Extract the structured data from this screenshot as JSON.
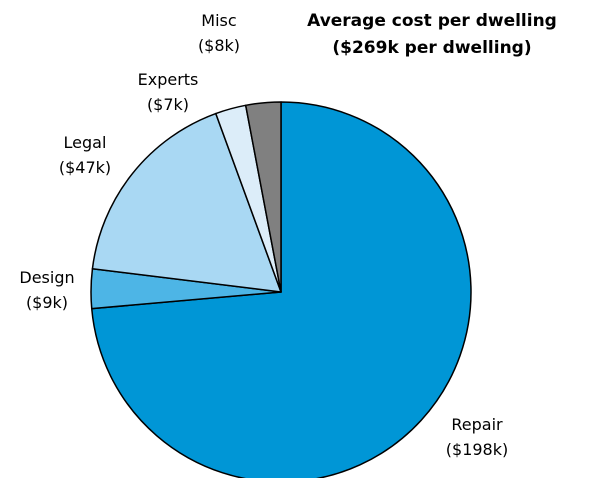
{
  "chart_data": {
    "type": "pie",
    "title": "Average cost per dwelling",
    "subtitle": "($269k per dwelling)",
    "slices": [
      {
        "name": "Repair",
        "value_label": "($198k)",
        "value": 198,
        "color": "#0096d6"
      },
      {
        "name": "Design",
        "value_label": "($9k)",
        "value": 9,
        "color": "#4db5e6"
      },
      {
        "name": "Legal",
        "value_label": "($47k)",
        "value": 47,
        "color": "#a9d8f3"
      },
      {
        "name": "Experts",
        "value_label": "($7k)",
        "value": 7,
        "color": "#dcedf9"
      },
      {
        "name": "Misc",
        "value_label": "($8k)",
        "value": 8,
        "color": "#808080"
      }
    ],
    "start_angle_deg": 0,
    "direction": "clockwise",
    "legend": "none"
  }
}
